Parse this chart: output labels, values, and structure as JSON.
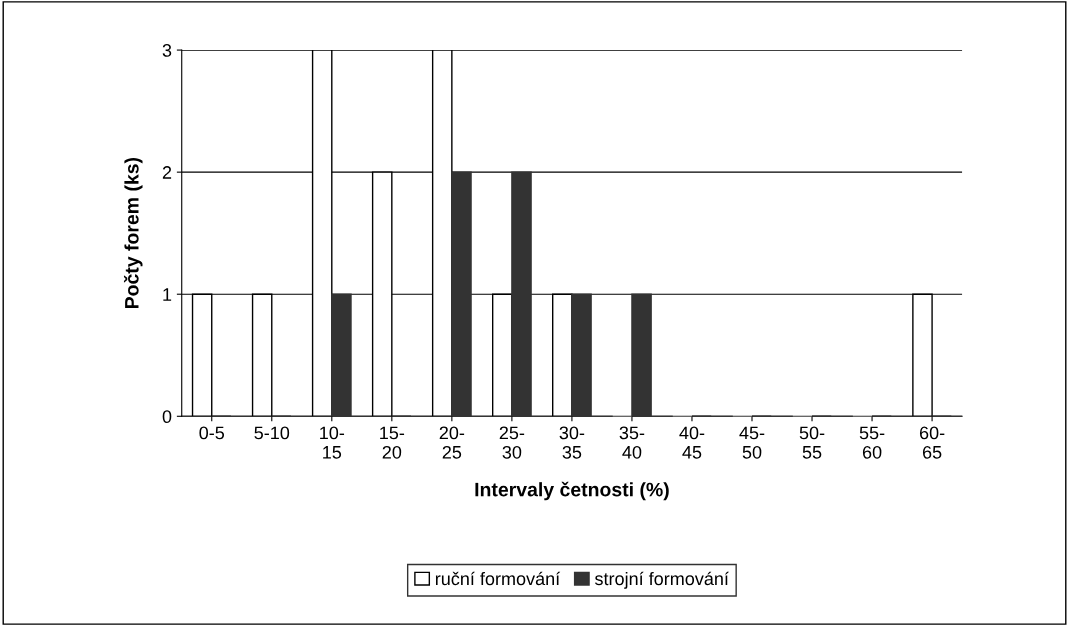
{
  "chart_data": {
    "type": "bar",
    "xlabel": "Intervaly četnosti (%)",
    "ylabel": "Počty forem (ks)",
    "categories": [
      "0-5",
      "5-10",
      "10-15",
      "15-20",
      "20-25",
      "25-30",
      "30-35",
      "35-40",
      "40-45",
      "45-50",
      "50-55",
      "55-60",
      "60-65"
    ],
    "series": [
      {
        "name": "ruční formování",
        "color": "#ffffff",
        "values": [
          1,
          1,
          3,
          2,
          3,
          1,
          1,
          0,
          0,
          0,
          0,
          0,
          1
        ]
      },
      {
        "name": "strojní formování",
        "color": "#333333",
        "values": [
          0,
          0,
          1,
          0,
          2,
          2,
          1,
          1,
          0,
          0,
          0,
          0,
          0
        ]
      }
    ],
    "ylim": [
      0,
      3
    ],
    "yticks": [
      0,
      1,
      2,
      3
    ],
    "grid": "y",
    "legend": "bottom"
  }
}
